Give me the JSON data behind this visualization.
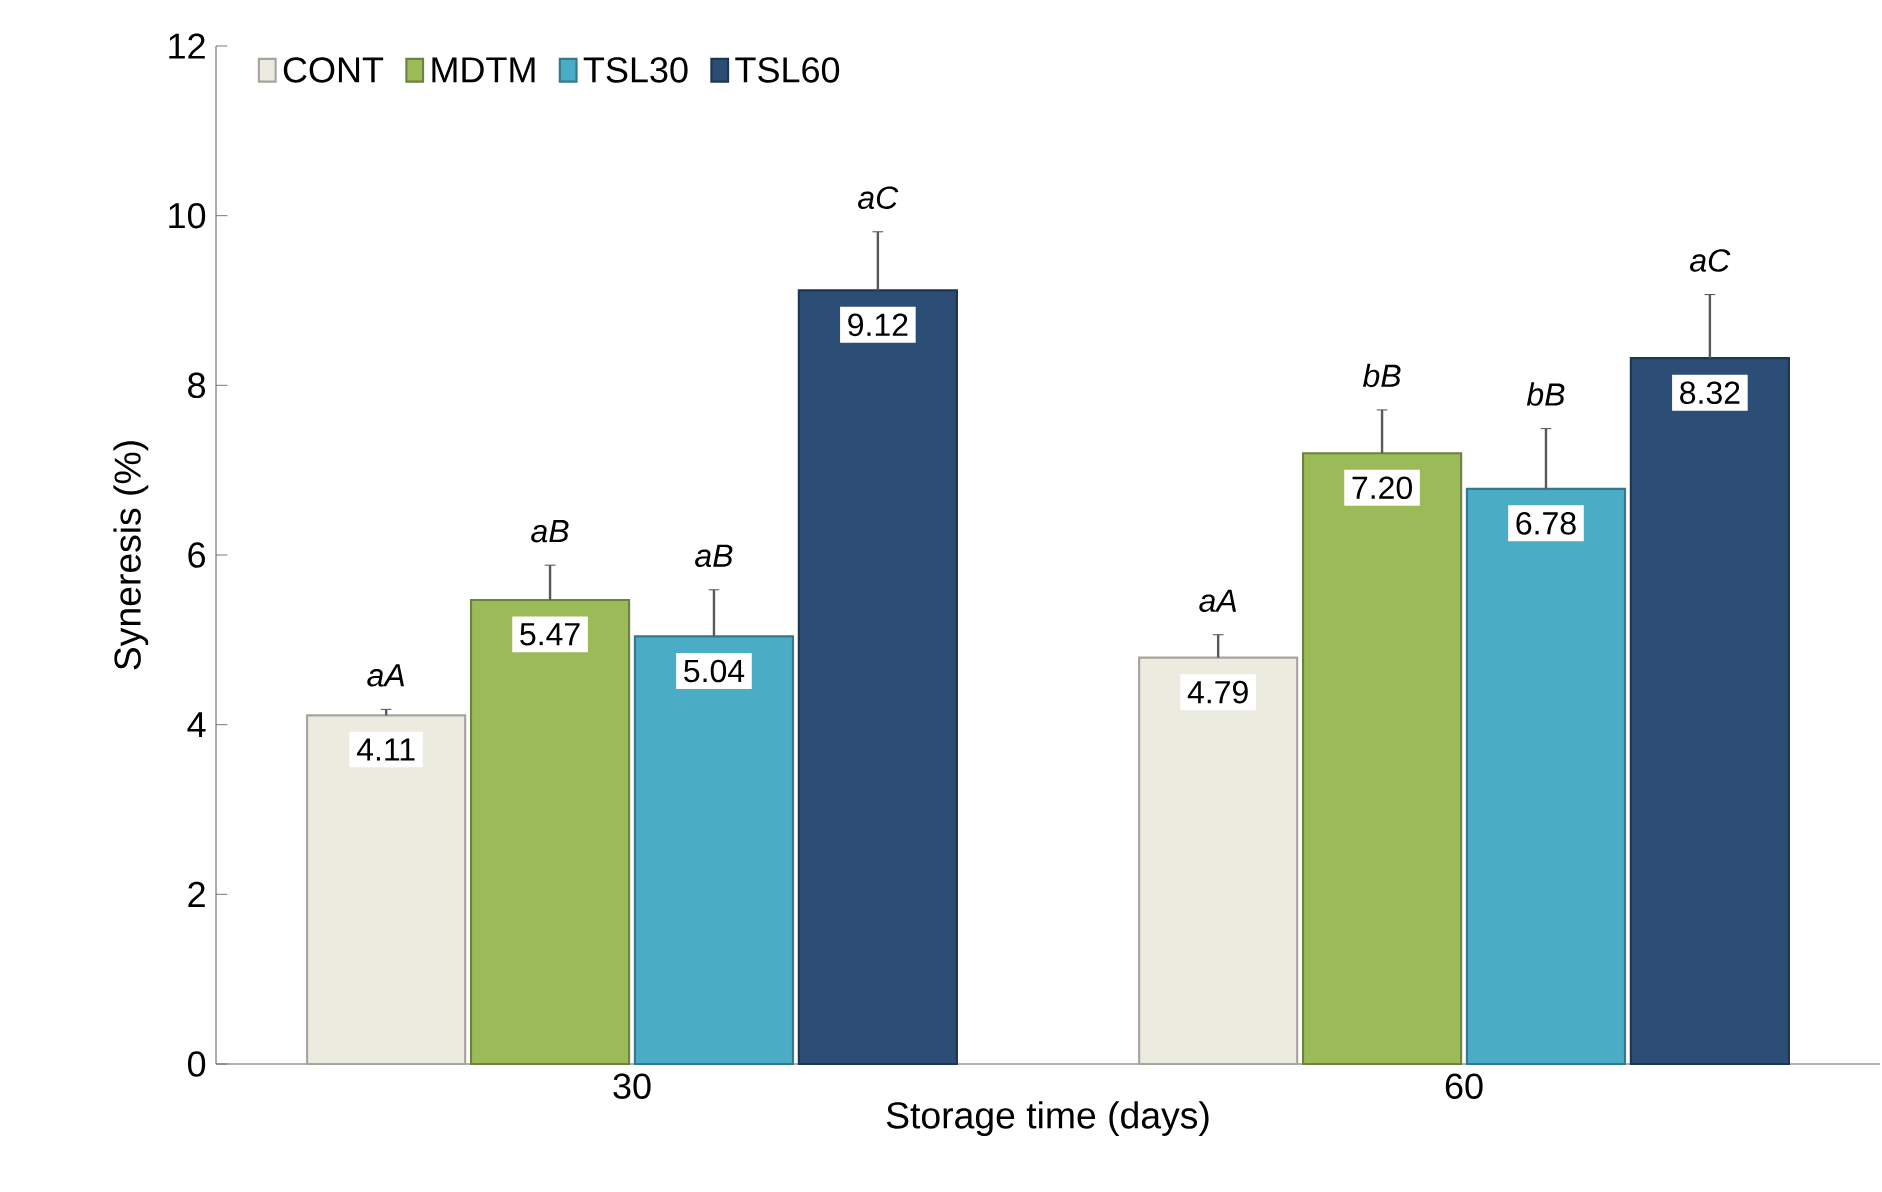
{
  "chart_data": {
    "type": "bar",
    "xlabel": "Storage time (days)",
    "ylabel": "Syneresis (%)",
    "categories": [
      "30",
      "60"
    ],
    "series": [
      {
        "name": "CONT",
        "color": "#ecebe0",
        "values": [
          4.11,
          4.79
        ],
        "errors": [
          0.07,
          0.27
        ],
        "value_labels": [
          "4.11",
          "4.79"
        ]
      },
      {
        "name": "MDTM",
        "color": "#9bbb59",
        "values": [
          5.47,
          7.2
        ],
        "errors": [
          0.41,
          0.51
        ],
        "value_labels": [
          "5.47",
          "7.20"
        ]
      },
      {
        "name": "TSL30",
        "color": "#4bacc6",
        "values": [
          5.04,
          6.78
        ],
        "errors": [
          0.55,
          0.71
        ],
        "value_labels": [
          "5.04",
          "6.78"
        ]
      },
      {
        "name": "TSL60",
        "color": "#2c4d75",
        "values": [
          9.12,
          8.32
        ],
        "errors": [
          0.69,
          0.75
        ],
        "value_labels": [
          "9.12",
          "8.32"
        ]
      }
    ],
    "ylim": [
      0,
      12
    ],
    "yticks": [
      0,
      2,
      4,
      6,
      8,
      10,
      12
    ],
    "legend": "top left",
    "grid": false,
    "annotations": [
      "*aA*",
      "*aB*",
      "*aB*",
      "*aC*",
      "*aA*",
      "*bB*",
      "*bB*",
      "*aC*"
    ]
  }
}
